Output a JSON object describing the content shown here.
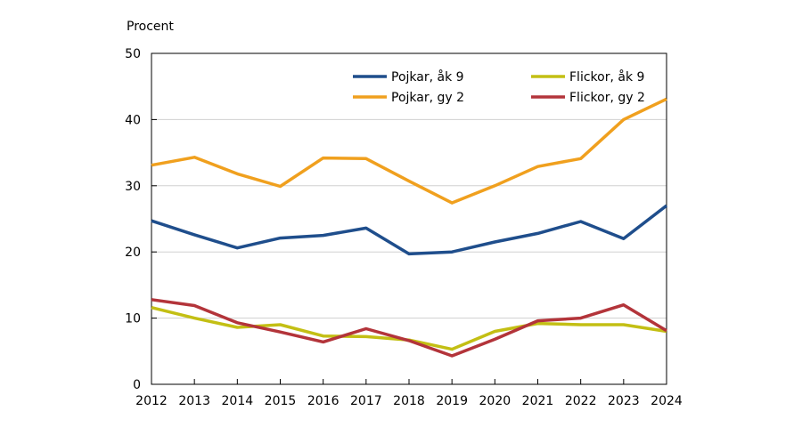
{
  "chart_data": {
    "type": "line",
    "title": "",
    "xlabel": "",
    "ylabel": "Procent",
    "ylim": [
      0,
      50
    ],
    "yticks": [
      0,
      10,
      20,
      30,
      40,
      50
    ],
    "x": [
      "2012",
      "2013",
      "2014",
      "2015",
      "2016",
      "2017",
      "2018",
      "2019",
      "2020",
      "2021",
      "2022",
      "2023",
      "2024"
    ],
    "grid": "horizontal",
    "legend_position": "top-right",
    "series": [
      {
        "name": "Pojkar, åk 9",
        "color": "#1f4e8c",
        "values": [
          24.7,
          22.6,
          20.6,
          22.1,
          22.5,
          23.6,
          19.7,
          20.0,
          21.5,
          22.8,
          24.6,
          22.0,
          27.0
        ]
      },
      {
        "name": "Flickor, åk 9",
        "color": "#c3bf14",
        "values": [
          11.6,
          10.0,
          8.6,
          9.0,
          7.3,
          7.2,
          6.7,
          5.3,
          8.0,
          9.2,
          9.0,
          9.0,
          8.0
        ]
      },
      {
        "name": "Pojkar, gy 2",
        "color": "#f0a01e",
        "values": [
          33.1,
          34.3,
          31.8,
          29.9,
          34.2,
          34.1,
          30.7,
          27.4,
          30.0,
          32.9,
          34.1,
          40.0,
          43.1
        ]
      },
      {
        "name": "Flickor, gy 2",
        "color": "#b3343a",
        "values": [
          12.8,
          11.9,
          9.3,
          7.9,
          6.4,
          8.4,
          6.6,
          4.3,
          6.8,
          9.6,
          10.0,
          12.0,
          8.1
        ]
      }
    ]
  }
}
